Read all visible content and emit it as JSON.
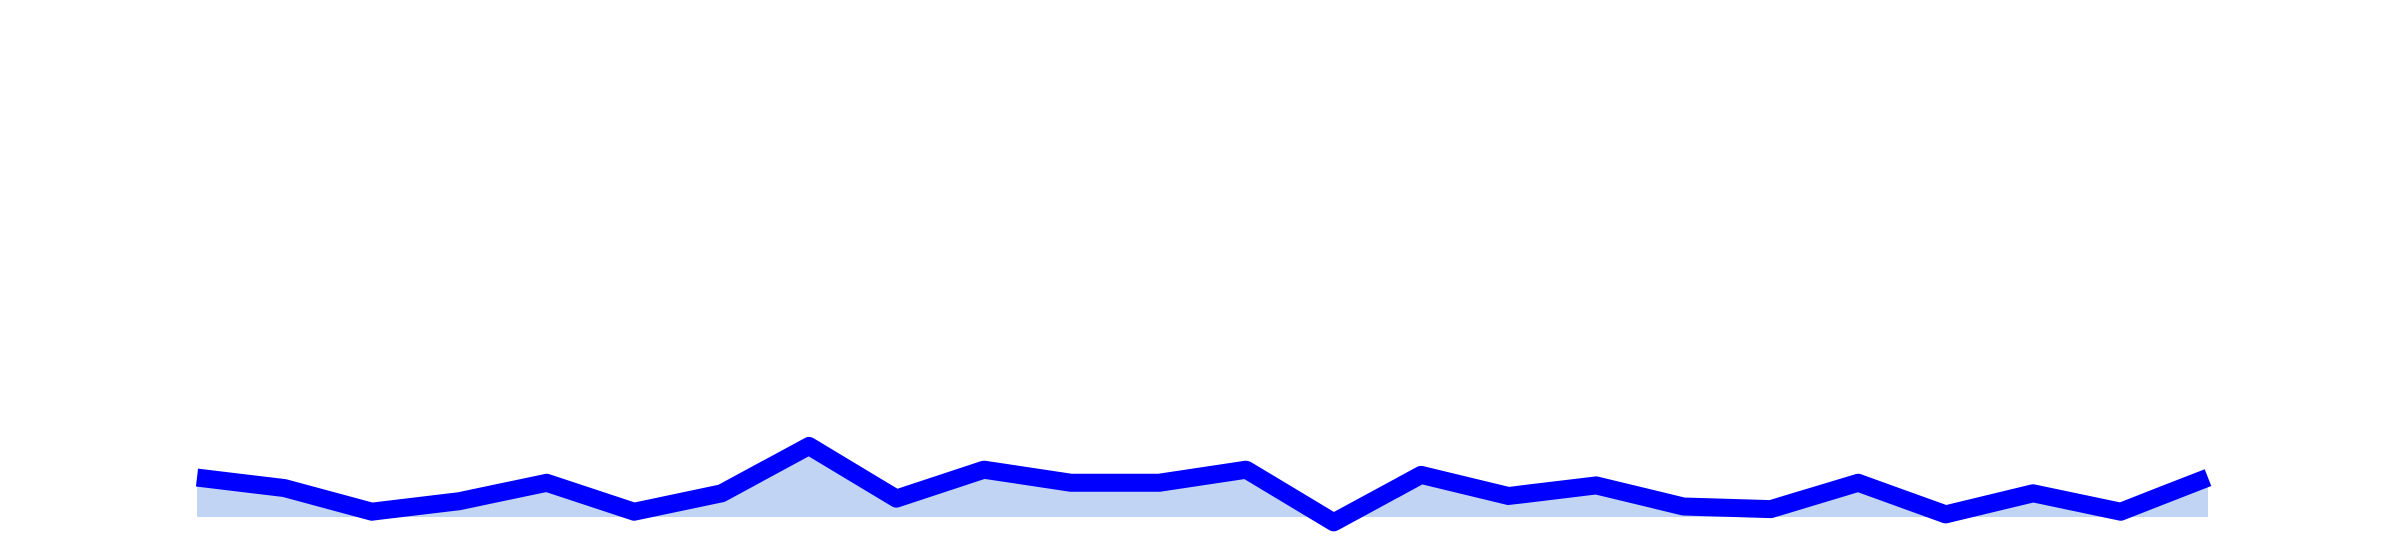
{
  "chart_data": {
    "type": "area",
    "x": [
      1,
      2,
      3,
      4,
      5,
      6,
      7,
      8,
      9,
      10,
      11,
      12,
      13,
      14,
      15,
      16,
      17,
      18,
      19,
      20,
      21,
      22,
      23,
      24
    ],
    "values": [
      15,
      11,
      2,
      6,
      13,
      2,
      9,
      27,
      7,
      18,
      13,
      13,
      18,
      -2,
      16,
      8,
      12,
      4,
      3,
      13,
      1,
      9,
      2,
      15
    ],
    "ylim": [
      -5,
      100
    ],
    "grid": false,
    "legend": "none",
    "colors": {
      "line": "#0000ff",
      "fill": "#c2d4f4"
    }
  }
}
